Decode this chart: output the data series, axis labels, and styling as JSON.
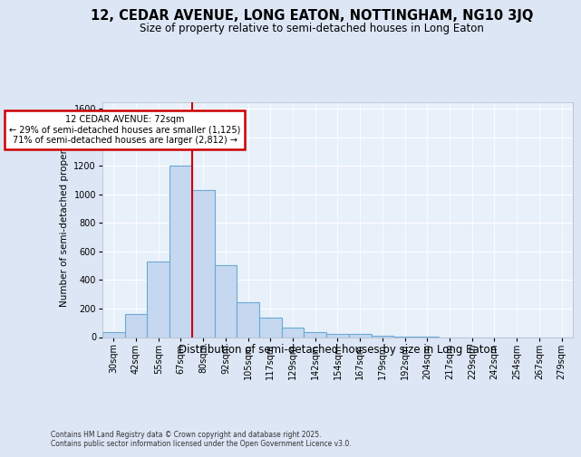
{
  "title": "12, CEDAR AVENUE, LONG EATON, NOTTINGHAM, NG10 3JQ",
  "subtitle": "Size of property relative to semi-detached houses in Long Eaton",
  "xlabel": "Distribution of semi-detached houses by size in Long Eaton",
  "ylabel": "Number of semi-detached properties",
  "footer": "Contains HM Land Registry data © Crown copyright and database right 2025.\nContains public sector information licensed under the Open Government Licence v3.0.",
  "categories": [
    "30sqm",
    "42sqm",
    "55sqm",
    "67sqm",
    "80sqm",
    "92sqm",
    "105sqm",
    "117sqm",
    "129sqm",
    "142sqm",
    "154sqm",
    "167sqm",
    "179sqm",
    "192sqm",
    "204sqm",
    "217sqm",
    "229sqm",
    "242sqm",
    "254sqm",
    "267sqm",
    "279sqm"
  ],
  "values": [
    38,
    163,
    528,
    1205,
    1030,
    505,
    245,
    135,
    65,
    38,
    25,
    20,
    8,
    3,
    3,
    0,
    0,
    0,
    0,
    0,
    0
  ],
  "bar_color": "#c5d8f0",
  "bar_edge_color": "#6aaad4",
  "annotation_title": "12 CEDAR AVENUE: 72sqm",
  "annotation_line1": "← 29% of semi-detached houses are smaller (1,125)",
  "annotation_line2": "71% of semi-detached houses are larger (2,812) →",
  "annotation_box_color": "#ffffff",
  "annotation_box_edge": "#cc0000",
  "line_color": "#cc0000",
  "property_line_bin": 4,
  "ylim": [
    0,
    1650
  ],
  "yticks": [
    0,
    200,
    400,
    600,
    800,
    1000,
    1200,
    1400,
    1600
  ],
  "bg_color": "#dce6f5",
  "plot_bg_color": "#e8f0fa",
  "grid_color": "#ffffff",
  "title_fontsize": 10.5,
  "subtitle_fontsize": 8.5,
  "xlabel_fontsize": 8.5,
  "ylabel_fontsize": 7.5,
  "tick_fontsize": 7,
  "footer_fontsize": 5.5,
  "annot_fontsize": 7
}
